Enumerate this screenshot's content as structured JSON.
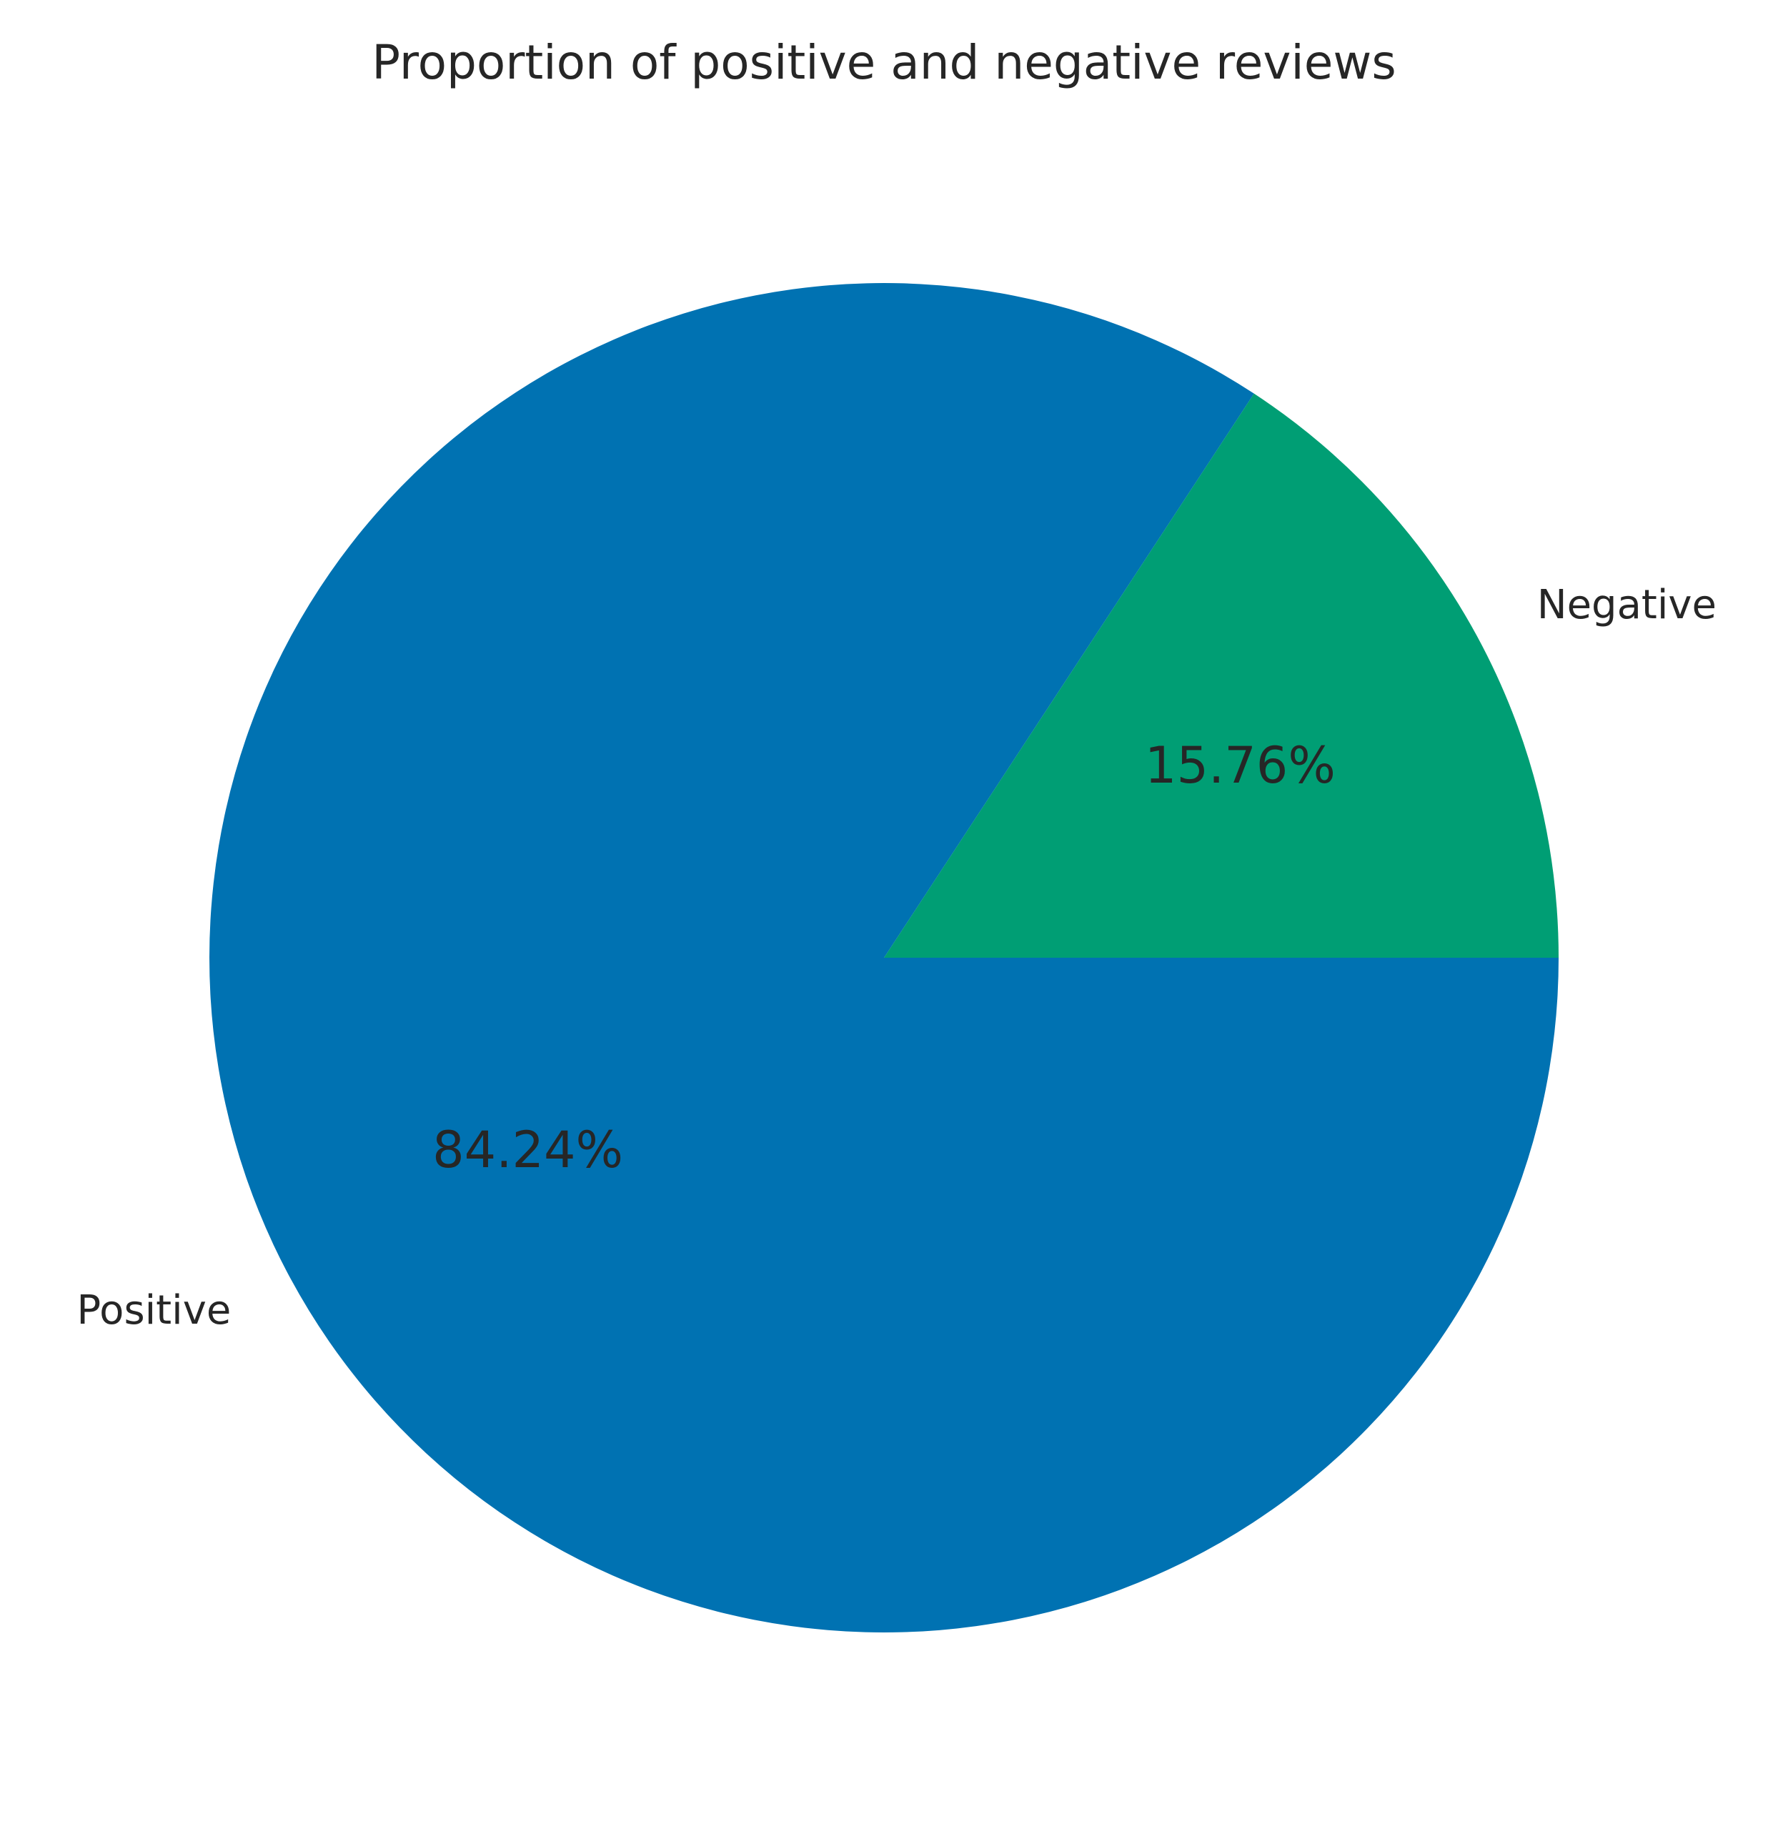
{
  "chart_data": {
    "type": "pie",
    "title": "Proportion of positive and negative reviews",
    "start_angle_deg": 0,
    "direction": "clockwise",
    "slices": [
      {
        "label": "Positive",
        "value": 84.24,
        "pct_label": "84.24%",
        "color": "#0072b2"
      },
      {
        "label": "Negative",
        "value": 15.76,
        "pct_label": "15.76%",
        "color": "#009e74"
      }
    ]
  }
}
